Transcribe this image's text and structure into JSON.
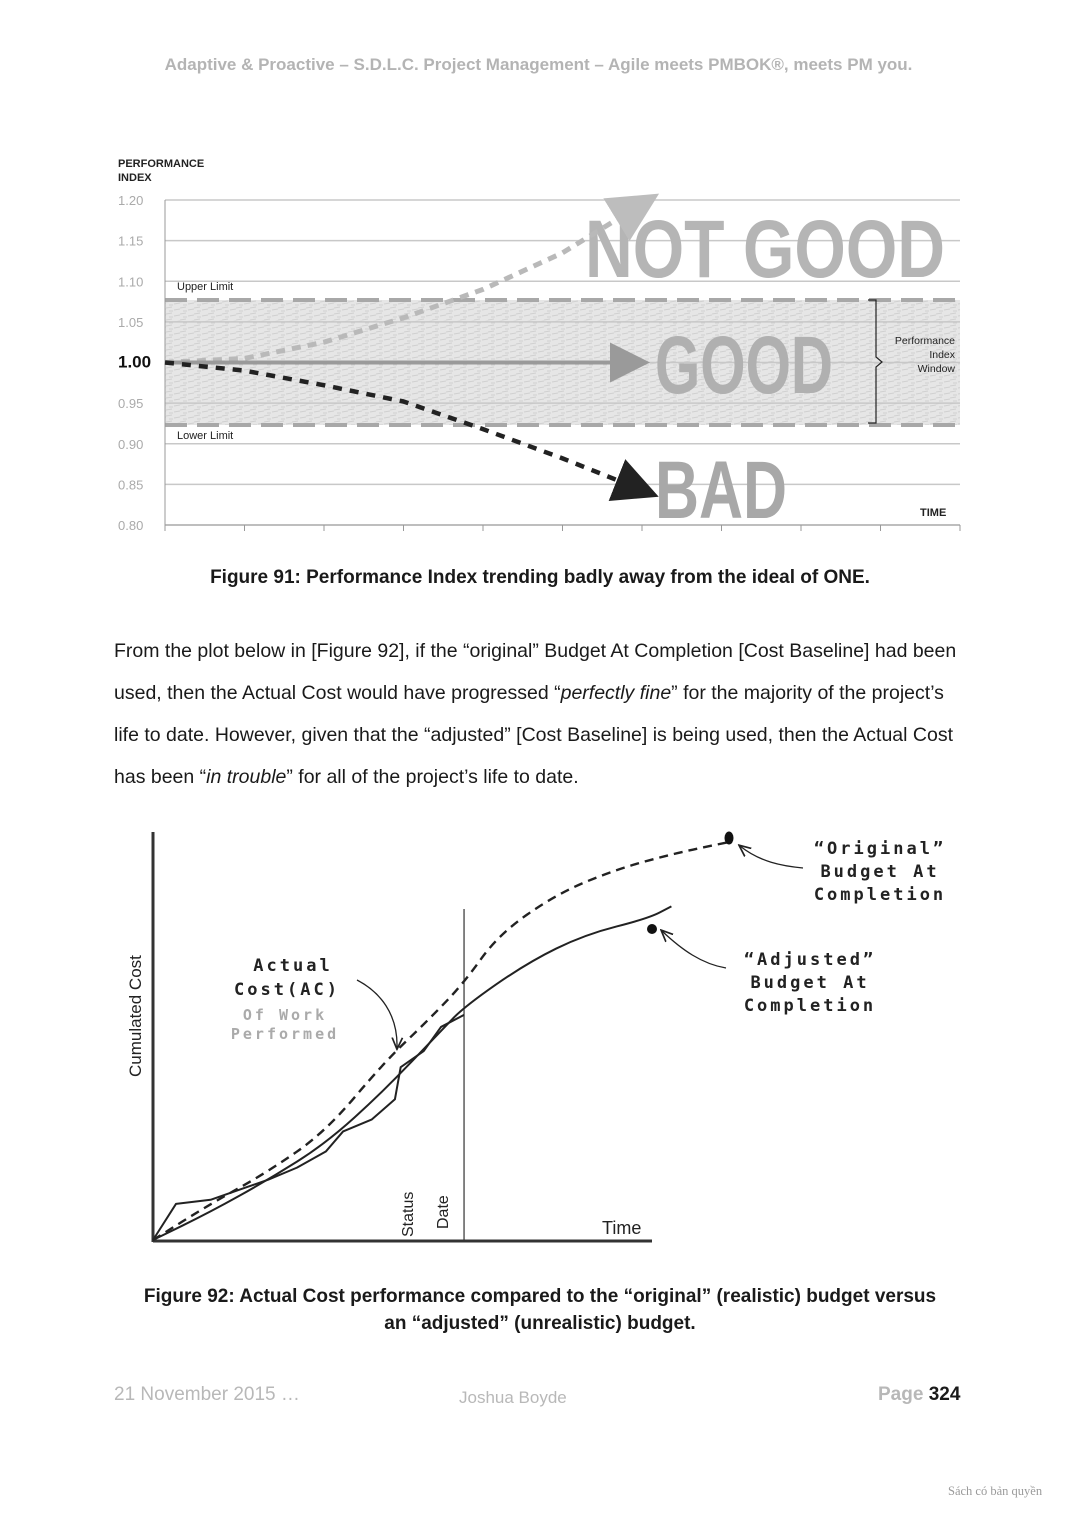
{
  "header": {
    "running_title": "Adaptive & Proactive – S.D.L.C. Project Management – Agile meets PMBOK®, meets PM you."
  },
  "figure91": {
    "chart_data": {
      "type": "line",
      "ylabel_line1": "PERFORMANCE",
      "ylabel_line2": "INDEX",
      "xlabel": "TIME",
      "ylim": [
        0.8,
        1.2
      ],
      "y_ticks": [
        "1.20",
        "1.15",
        "1.10",
        "1.05",
        "1.00",
        "0.95",
        "0.90",
        "0.85",
        "0.80"
      ],
      "upper_limit_label": "Upper Limit",
      "lower_limit_label": "Lower Limit",
      "upper_limit": 1.075,
      "lower_limit": 0.923,
      "window_label_lines": [
        "Performance",
        "Index",
        "Window"
      ],
      "zone_labels": {
        "not_good": "NOT GOOD",
        "good": "GOOD",
        "bad": "BAD"
      },
      "series": [
        {
          "name": "",
          "style": "dashed-light",
          "points": [
            [
              0,
              1.0
            ],
            [
              0.1,
              1.005
            ],
            [
              0.2,
              1.025
            ],
            [
              0.3,
              1.055
            ],
            [
              0.4,
              1.09
            ],
            [
              0.5,
              1.135
            ],
            [
              0.6,
              1.195
            ]
          ]
        },
        {
          "name": "",
          "style": "solid-arrow",
          "points": [
            [
              0,
              1.0
            ],
            [
              0.6,
              1.0
            ]
          ]
        },
        {
          "name": "",
          "style": "dashed-dark",
          "points": [
            [
              0,
              1.0
            ],
            [
              0.1,
              0.99
            ],
            [
              0.2,
              0.972
            ],
            [
              0.3,
              0.952
            ],
            [
              0.4,
              0.918
            ],
            [
              0.5,
              0.882
            ],
            [
              0.6,
              0.843
            ]
          ]
        }
      ]
    },
    "caption": "Figure 91: Performance Index trending badly away from the ideal of ONE."
  },
  "paragraph": {
    "part1": "From the plot below in [Figure 92], if the “original” Budget At Completion [Cost Baseline] had been used, then the Actual Cost would have progressed “",
    "em1": "perfectly fine",
    "part2": "” for the majority of the project’s life to date.  However, given that the “adjusted” [Cost Baseline] is being used, then the Actual Cost has been “",
    "em2": "in trouble",
    "part3": "” for all of the project’s life to date."
  },
  "figure92": {
    "chart_data": {
      "type": "line",
      "ylabel": "Cumulated Cost",
      "xlabel": "Time",
      "status_label": "Status",
      "date_label": "Date",
      "status_date_x": 0.54,
      "ylim": [
        0,
        1
      ],
      "xlim": [
        0,
        1
      ],
      "series": [
        {
          "name": "",
          "style": "dashed",
          "points": [
            [
              0,
              0
            ],
            [
              0.1,
              0.09
            ],
            [
              0.2,
              0.17
            ],
            [
              0.3,
              0.27
            ],
            [
              0.4,
              0.44
            ],
            [
              0.48,
              0.55
            ],
            [
              0.54,
              0.64
            ],
            [
              0.6,
              0.76
            ],
            [
              0.7,
              0.86
            ],
            [
              0.8,
              0.92
            ],
            [
              0.9,
              0.96
            ],
            [
              1.0,
              0.99
            ]
          ]
        },
        {
          "name": "",
          "style": "solid",
          "points": [
            [
              0,
              0
            ],
            [
              0.1,
              0.07
            ],
            [
              0.2,
              0.15
            ],
            [
              0.3,
              0.24
            ],
            [
              0.4,
              0.37
            ],
            [
              0.5,
              0.52
            ],
            [
              0.54,
              0.58
            ],
            [
              0.65,
              0.69
            ],
            [
              0.75,
              0.76
            ],
            [
              0.86,
              0.8
            ],
            [
              0.9,
              0.83
            ]
          ]
        },
        {
          "name": "",
          "style": "solid-jagged",
          "points": [
            [
              0,
              0
            ],
            [
              0.04,
              0.09
            ],
            [
              0.1,
              0.1
            ],
            [
              0.16,
              0.13
            ],
            [
              0.2,
              0.15
            ],
            [
              0.25,
              0.18
            ],
            [
              0.3,
              0.22
            ],
            [
              0.33,
              0.27
            ],
            [
              0.38,
              0.3
            ],
            [
              0.42,
              0.35
            ],
            [
              0.43,
              0.43
            ],
            [
              0.47,
              0.47
            ],
            [
              0.5,
              0.53
            ],
            [
              0.54,
              0.56
            ]
          ]
        }
      ],
      "annotations": {
        "original_bac": [
          "“Original”",
          "Budget At",
          "Completion"
        ],
        "adjusted_bac": [
          "“Adjusted”",
          "Budget At",
          "Completion"
        ],
        "actual_cost": [
          "Actual",
          "Cost(AC)"
        ],
        "of_work": [
          "Of Work",
          "Performed"
        ]
      }
    },
    "caption_line1": "Figure 92: Actual Cost performance compared to the “original” (realistic) budget versus",
    "caption_line2": "an “adjusted” (unrealistic) budget."
  },
  "footer": {
    "date": "21 November 2015 …",
    "author": "Joshua Boyde",
    "page_label": "Page",
    "page_number": "324"
  },
  "watermark": "Sách có bản quyền"
}
